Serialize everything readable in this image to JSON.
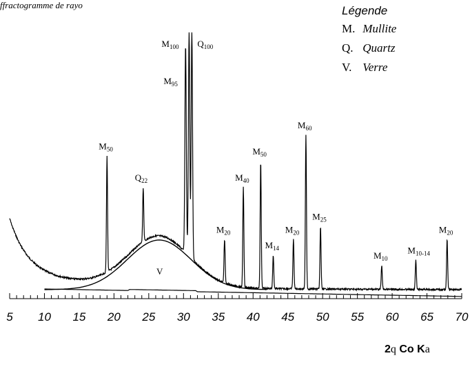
{
  "caption": "ffractogramme de rayo",
  "legend": {
    "title": "Légende",
    "items": [
      {
        "abbr": "M.",
        "name": "Mullite"
      },
      {
        "abbr": "Q.",
        "name": "Quartz"
      },
      {
        "abbr": "V.",
        "name": "Verre"
      }
    ]
  },
  "axis_title": {
    "two": "2",
    "theta": "q",
    "main": " Co K",
    "alpha": "a"
  },
  "chart_data": {
    "type": "line",
    "xlim": [
      5,
      70
    ],
    "xticks": [
      "5",
      "10",
      "15",
      "20",
      "25",
      "30",
      "35",
      "40",
      "45",
      "50",
      "55",
      "60",
      "65",
      "70"
    ],
    "grid": false,
    "ylabel": "",
    "amorphous_hump": {
      "label": "V",
      "x": 26.5
    },
    "peaks": [
      {
        "x": 19.0,
        "intensity": 52,
        "label": "M",
        "sub": "50"
      },
      {
        "x": 24.2,
        "intensity": 40,
        "label": "Q",
        "sub": "22"
      },
      {
        "x": 30.3,
        "intensity": 95,
        "label": "M",
        "sub": "95"
      },
      {
        "x": 30.8,
        "intensity": 100,
        "label": "M",
        "sub": "100"
      },
      {
        "x": 31.2,
        "intensity": 100,
        "label": "Q",
        "sub": "100"
      },
      {
        "x": 35.9,
        "intensity": 20,
        "label": "M",
        "sub": "20"
      },
      {
        "x": 38.6,
        "intensity": 40,
        "label": "M",
        "sub": "40"
      },
      {
        "x": 41.1,
        "intensity": 50,
        "label": "M",
        "sub": "50"
      },
      {
        "x": 42.9,
        "intensity": 14,
        "label": "M",
        "sub": "14"
      },
      {
        "x": 45.8,
        "intensity": 20,
        "label": "M",
        "sub": "20"
      },
      {
        "x": 47.6,
        "intensity": 60,
        "label": "M",
        "sub": "60"
      },
      {
        "x": 49.7,
        "intensity": 25,
        "label": "M",
        "sub": "25"
      },
      {
        "x": 58.5,
        "intensity": 10,
        "label": "M",
        "sub": "10"
      },
      {
        "x": 63.4,
        "intensity": 12,
        "label": "M",
        "sub": "10-14"
      },
      {
        "x": 67.9,
        "intensity": 20,
        "label": "M",
        "sub": "20"
      }
    ]
  }
}
